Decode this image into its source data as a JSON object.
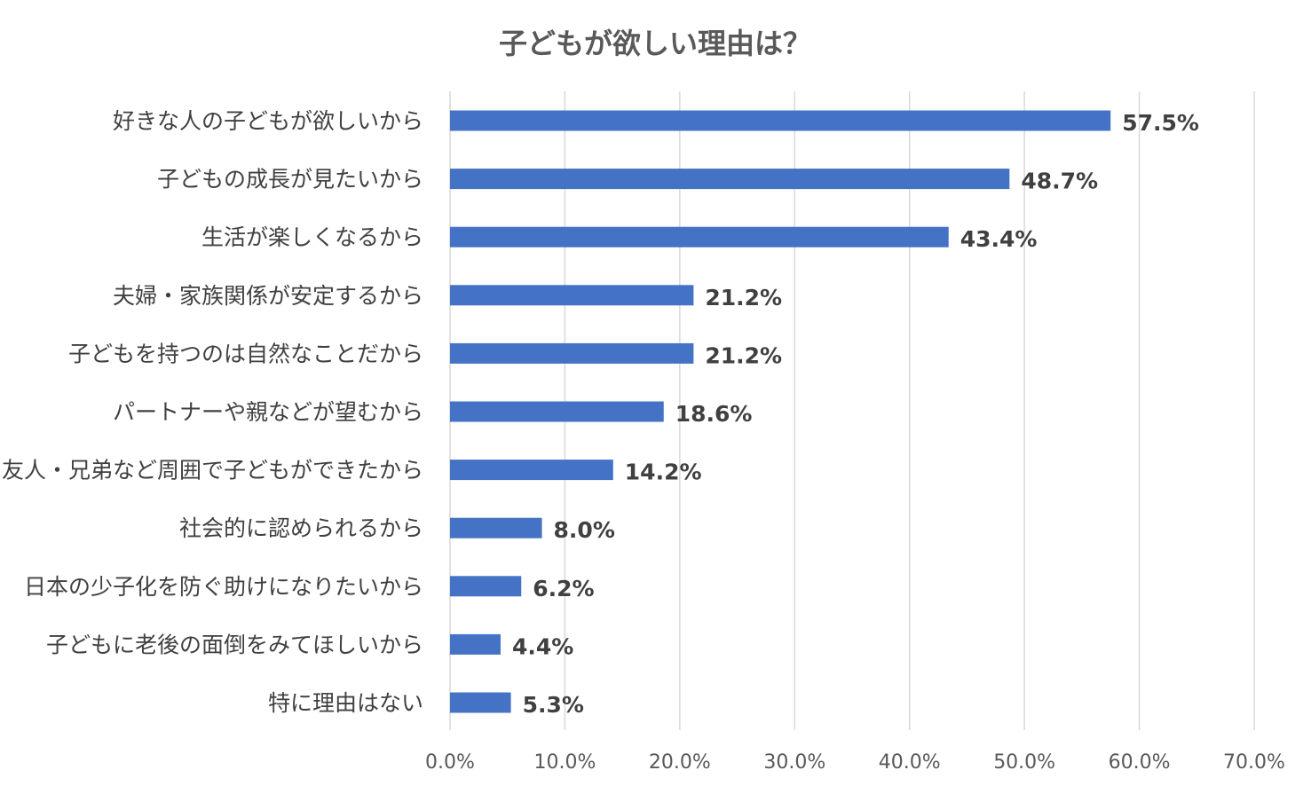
{
  "chart_data": {
    "type": "bar",
    "orientation": "horizontal",
    "title": "子どもが欲しい理由は？",
    "xlabel": "",
    "ylabel": "",
    "xlim": [
      0,
      70
    ],
    "x_ticks": [
      0,
      10,
      20,
      30,
      40,
      50,
      60,
      70
    ],
    "x_tick_labels": [
      "0.0%",
      "10.0%",
      "20.0%",
      "30.0%",
      "40.0%",
      "50.0%",
      "60.0%",
      "70.0%"
    ],
    "grid": true,
    "legend": "none",
    "categories": [
      "好きな人の子どもが欲しいから",
      "子どもの成長が見たいから",
      "生活が楽しくなるから",
      "夫婦・家族関係が安定するから",
      "子どもを持つのは自然なことだから",
      "パートナーや親などが望むから",
      "友人・兄弟など周囲で子どもができたから",
      "社会的に認められるから",
      "日本の少子化を防ぐ助けになりたいから",
      "子どもに老後の面倒をみてほしいから",
      "特に理由はない"
    ],
    "values": [
      57.5,
      48.7,
      43.4,
      21.2,
      21.2,
      18.6,
      14.2,
      8.0,
      6.2,
      4.4,
      5.3
    ],
    "value_labels": [
      "57.5%",
      "48.7%",
      "43.4%",
      "21.2%",
      "21.2%",
      "18.6%",
      "14.2%",
      "8.0%",
      "6.2%",
      "4.4%",
      "5.3%"
    ],
    "bar_color": "#4472c4",
    "grid_color": "#d9d9d9",
    "label_color": "#404040",
    "title_color": "#595959"
  }
}
